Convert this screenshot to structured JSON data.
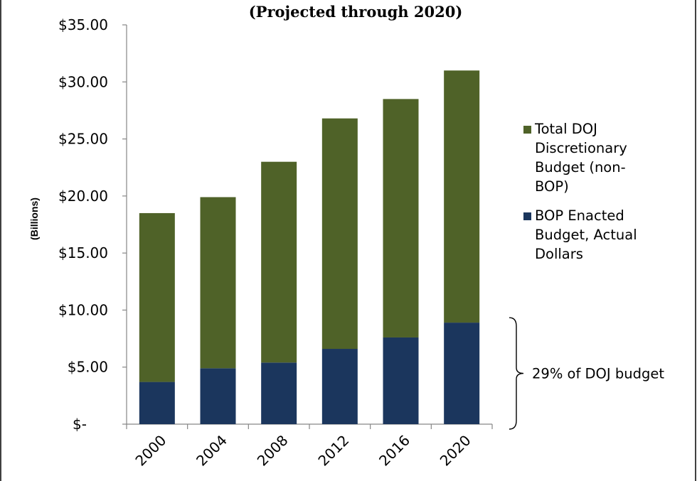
{
  "chart_data": {
    "type": "bar",
    "stacked": true,
    "title": "(Projected through 2020)",
    "ylabel": "(Billions)",
    "xlabel": "",
    "categories": [
      "2000",
      "2004",
      "2008",
      "2012",
      "2016",
      "2020"
    ],
    "series": [
      {
        "name": "BOP Enacted Budget, Actual Dollars",
        "color": "#1b365d",
        "values": [
          3.7,
          4.9,
          5.4,
          6.6,
          7.6,
          8.9
        ]
      },
      {
        "name": "Total DOJ Discretionary Budget (non-BOP)",
        "color": "#4f6228",
        "values": [
          14.8,
          15.0,
          17.6,
          20.2,
          20.9,
          22.1
        ]
      }
    ],
    "ylim": [
      0,
      35
    ],
    "yticks": [
      {
        "value": 35,
        "label": "$35.00"
      },
      {
        "value": 30,
        "label": "$30.00"
      },
      {
        "value": 25,
        "label": "$25.00"
      },
      {
        "value": 20,
        "label": "$20.00"
      },
      {
        "value": 15,
        "label": "$15.00"
      },
      {
        "value": 10,
        "label": "$10.00"
      },
      {
        "value": 5,
        "label": "$5.00"
      },
      {
        "value": 0,
        "label": "$-"
      }
    ],
    "legend": {
      "placement": "right",
      "entries": [
        {
          "lines": [
            "Total DOJ",
            "Discretionary",
            "Budget (non-",
            "BOP)"
          ],
          "color": "#4f6228"
        },
        {
          "lines": [
            "BOP Enacted",
            "Budget, Actual",
            "Dollars"
          ],
          "color": "#1b365d"
        }
      ]
    },
    "annotation": {
      "text": "29% of DOJ budget",
      "range": [
        0,
        8.9
      ]
    },
    "grid": false
  }
}
